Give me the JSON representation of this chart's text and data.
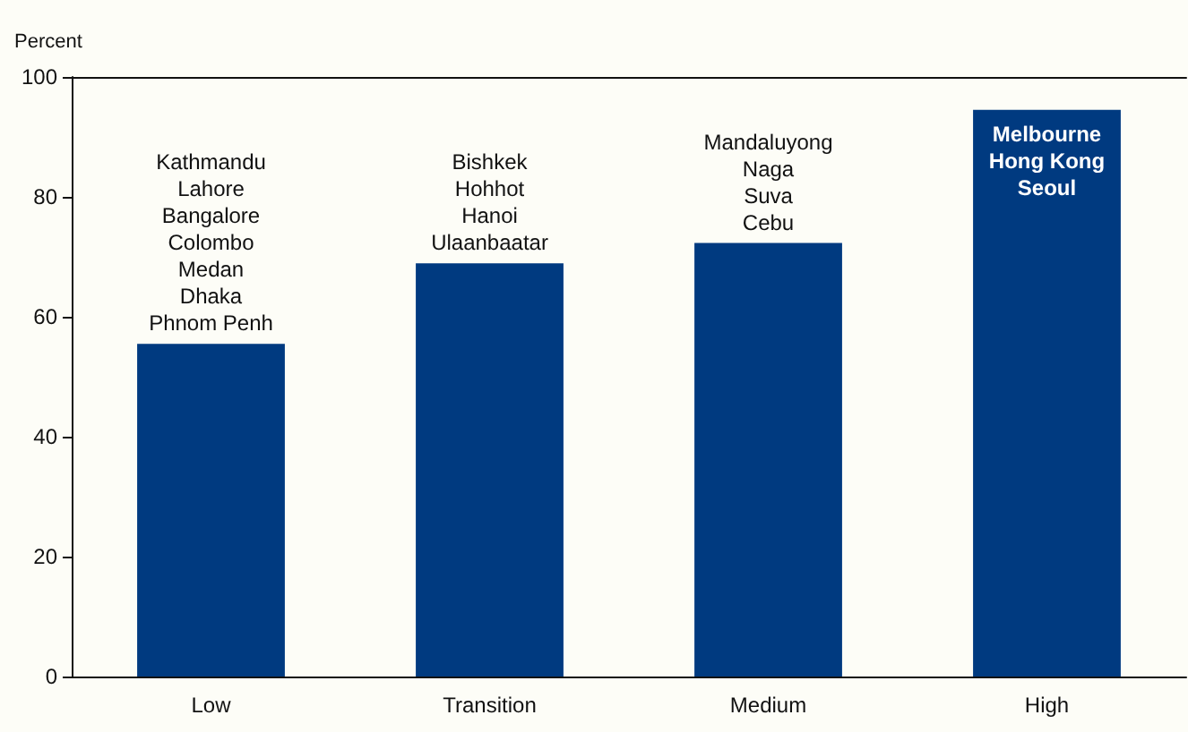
{
  "chart_data": {
    "type": "bar",
    "ylabel": "Percent",
    "categories": [
      "Low",
      "Transition",
      "Medium",
      "High"
    ],
    "values": [
      55.5,
      68.9,
      72.3,
      94.5
    ],
    "color": "#003a80",
    "ylim": [
      0,
      100
    ],
    "yticks": [
      0,
      20,
      40,
      60,
      80,
      100
    ],
    "grid": false,
    "annotations": [
      {
        "text": "Kathmandu\nLahore\nBangalore\nColombo\nMedan\nDhaka\nPhnom Penh",
        "x": "Low",
        "y": 55.5
      },
      {
        "text": "Bishkek\nHohhot\nHanoi\nUlaanbaatar",
        "x": "Transition",
        "y": 68.9
      },
      {
        "text": "Mandaluyong\nNaga\nSuva\nCebu",
        "x": "Medium",
        "y": 72.3
      },
      {
        "text": "Melbourne\nHong Kong\nSeoul",
        "x": "High",
        "y": 94.5
      }
    ]
  }
}
